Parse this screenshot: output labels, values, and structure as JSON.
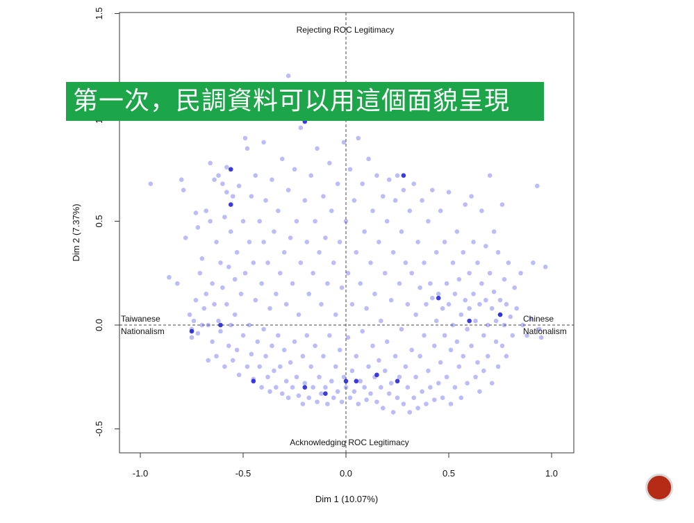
{
  "banner": {
    "text": "第一次，民調資料可以用這個面貌呈現"
  },
  "nav": {
    "icon": "next-slide-circle-icon",
    "color": "#b52b16"
  },
  "chart_data": {
    "type": "scatter",
    "title": "",
    "xlabel": "Dim 1 (10.07%)",
    "ylabel": "Dim 2 (7.37%)",
    "xlim": [
      -1.1,
      1.1
    ],
    "ylim": [
      -0.6,
      1.5
    ],
    "xticks": [
      -1.0,
      -0.5,
      0.0,
      0.5,
      1.0
    ],
    "xtick_labels": [
      "-1.0",
      "-0.5",
      "0.0",
      "0.5",
      "1.0"
    ],
    "yticks": [
      -0.5,
      0.0,
      0.5,
      1.0,
      1.5
    ],
    "ytick_labels": [
      "-0.5",
      "0.0",
      "0.5",
      "1.0",
      "1.5"
    ],
    "grid": false,
    "reference_lines": {
      "x": 0,
      "y": 0,
      "style": "dashed"
    },
    "point_color": "#4040ee",
    "point_opacity": 0.35,
    "annotations": {
      "top": "Rejecting ROC Legitimacy",
      "bottom": "Acknowledging ROC Legitimacy",
      "left_line1": "Taiwanese",
      "left_line2": "Nationalism",
      "right_line1": "Chinese",
      "right_line2": "Nationalism"
    },
    "points": [
      [
        -0.95,
        0.68
      ],
      [
        -0.86,
        0.23
      ],
      [
        -0.82,
        0.2
      ],
      [
        -0.8,
        0.7
      ],
      [
        -0.79,
        0.65
      ],
      [
        -0.78,
        0.42
      ],
      [
        -0.76,
        0.05
      ],
      [
        -0.75,
        -0.02
      ],
      [
        -0.75,
        -0.06
      ],
      [
        -0.74,
        0.02
      ],
      [
        -0.73,
        0.54
      ],
      [
        -0.73,
        0.12
      ],
      [
        -0.72,
        0.47
      ],
      [
        -0.72,
        -0.04
      ],
      [
        -0.71,
        0.25
      ],
      [
        -0.7,
        0.32
      ],
      [
        -0.7,
        0.0
      ],
      [
        -0.69,
        0.08
      ],
      [
        -0.68,
        0.55
      ],
      [
        -0.68,
        0.15
      ],
      [
        -0.67,
        0.0
      ],
      [
        -0.67,
        -0.17
      ],
      [
        -0.66,
        0.78
      ],
      [
        -0.66,
        0.5
      ],
      [
        -0.65,
        0.2
      ],
      [
        -0.65,
        -0.08
      ],
      [
        -0.64,
        0.7
      ],
      [
        -0.64,
        0.1
      ],
      [
        -0.63,
        0.4
      ],
      [
        -0.63,
        -0.15
      ],
      [
        -0.62,
        0.72
      ],
      [
        -0.62,
        0.02
      ],
      [
        -0.61,
        0.3
      ],
      [
        -0.61,
        -0.03
      ],
      [
        -0.6,
        0.68
      ],
      [
        -0.6,
        0.18
      ],
      [
        -0.59,
        0.52
      ],
      [
        -0.59,
        -0.2
      ],
      [
        -0.58,
        0.76
      ],
      [
        -0.58,
        0.64
      ],
      [
        -0.58,
        0.1
      ],
      [
        -0.57,
        0.28
      ],
      [
        -0.57,
        -0.1
      ],
      [
        -0.56,
        0.45
      ],
      [
        -0.56,
        0.0
      ],
      [
        -0.55,
        0.62
      ],
      [
        -0.55,
        -0.17
      ],
      [
        -0.54,
        0.22
      ],
      [
        -0.54,
        0.05
      ],
      [
        -0.53,
        0.35
      ],
      [
        -0.53,
        -0.12
      ],
      [
        -0.52,
        0.67
      ],
      [
        -0.52,
        -0.24
      ],
      [
        -0.51,
        0.15
      ],
      [
        -0.5,
        0.5
      ],
      [
        -0.5,
        -0.05
      ],
      [
        -0.49,
        0.9
      ],
      [
        -0.49,
        0.25
      ],
      [
        -0.48,
        0.85
      ],
      [
        -0.48,
        -0.2
      ],
      [
        -0.47,
        0.4
      ],
      [
        -0.47,
        0.0
      ],
      [
        -0.46,
        0.62
      ],
      [
        -0.46,
        -0.14
      ],
      [
        -0.45,
        0.3
      ],
      [
        -0.45,
        -0.26
      ],
      [
        -0.44,
        0.72
      ],
      [
        -0.44,
        0.12
      ],
      [
        -0.43,
        -0.08
      ],
      [
        -0.42,
        0.5
      ],
      [
        -0.42,
        -0.2
      ],
      [
        -0.41,
        0.2
      ],
      [
        -0.41,
        -0.3
      ],
      [
        -0.4,
        0.88
      ],
      [
        -0.4,
        0.4
      ],
      [
        -0.4,
        -0.02
      ],
      [
        -0.39,
        0.6
      ],
      [
        -0.39,
        -0.15
      ],
      [
        -0.38,
        0.3
      ],
      [
        -0.38,
        -0.25
      ],
      [
        -0.37,
        0.08
      ],
      [
        -0.37,
        -0.32
      ],
      [
        -0.36,
        0.7
      ],
      [
        -0.36,
        -0.1
      ],
      [
        -0.35,
        0.45
      ],
      [
        -0.35,
        -0.22
      ],
      [
        -0.34,
        0.15
      ],
      [
        -0.34,
        -0.3
      ],
      [
        -0.33,
        0.55
      ],
      [
        -0.33,
        -0.05
      ],
      [
        -0.32,
        0.25
      ],
      [
        -0.32,
        -0.2
      ],
      [
        -0.31,
        0.8
      ],
      [
        -0.31,
        -0.33
      ],
      [
        -0.3,
        0.35
      ],
      [
        -0.3,
        -0.12
      ],
      [
        -0.29,
        0.1
      ],
      [
        -0.29,
        -0.27
      ],
      [
        -0.28,
        1.2
      ],
      [
        -0.28,
        0.65
      ],
      [
        -0.28,
        -0.35
      ],
      [
        -0.27,
        0.42
      ],
      [
        -0.27,
        -0.18
      ],
      [
        -0.26,
        0.2
      ],
      [
        -0.26,
        -0.3
      ],
      [
        -0.25,
        0.75
      ],
      [
        -0.25,
        -0.08
      ],
      [
        -0.24,
        0.5
      ],
      [
        -0.24,
        -0.25
      ],
      [
        -0.23,
        0.05
      ],
      [
        -0.23,
        -0.34
      ],
      [
        -0.22,
        0.95
      ],
      [
        -0.22,
        0.3
      ],
      [
        -0.21,
        -0.15
      ],
      [
        -0.21,
        -0.38
      ],
      [
        -0.2,
        1.0
      ],
      [
        -0.2,
        0.6
      ],
      [
        -0.2,
        -0.28
      ],
      [
        -0.19,
        0.4
      ],
      [
        -0.19,
        -0.05
      ],
      [
        -0.18,
        0.15
      ],
      [
        -0.18,
        -0.35
      ],
      [
        -0.17,
        0.72
      ],
      [
        -0.17,
        -0.2
      ],
      [
        -0.16,
        0.25
      ],
      [
        -0.16,
        -0.3
      ],
      [
        -0.15,
        0.5
      ],
      [
        -0.15,
        -0.1
      ],
      [
        -0.14,
        0.85
      ],
      [
        -0.14,
        -0.37
      ],
      [
        -0.13,
        0.35
      ],
      [
        -0.13,
        -0.25
      ],
      [
        -0.12,
        0.1
      ],
      [
        -0.12,
        -0.33
      ],
      [
        -0.11,
        0.62
      ],
      [
        -0.11,
        -0.15
      ],
      [
        -0.1,
        0.42
      ],
      [
        -0.1,
        -0.3
      ],
      [
        -0.09,
        0.2
      ],
      [
        -0.09,
        -0.38
      ],
      [
        -0.08,
        0.78
      ],
      [
        -0.08,
        -0.05
      ],
      [
        -0.07,
        0.55
      ],
      [
        -0.07,
        -0.27
      ],
      [
        -0.06,
        0.3
      ],
      [
        -0.06,
        -0.35
      ],
      [
        -0.05,
        0.05
      ],
      [
        -0.05,
        -0.2
      ],
      [
        -0.04,
        0.68
      ],
      [
        -0.04,
        -0.32
      ],
      [
        -0.03,
        0.4
      ],
      [
        -0.03,
        -0.12
      ],
      [
        -0.02,
        0.18
      ],
      [
        -0.02,
        -0.37
      ],
      [
        -0.01,
        0.88
      ],
      [
        -0.01,
        -0.25
      ],
      [
        0.0,
        0.5
      ],
      [
        0.0,
        -0.3
      ],
      [
        0.01,
        0.25
      ],
      [
        0.01,
        -0.06
      ],
      [
        0.02,
        0.75
      ],
      [
        0.02,
        -0.35
      ],
      [
        0.03,
        0.1
      ],
      [
        0.03,
        -0.22
      ],
      [
        0.04,
        0.6
      ],
      [
        0.04,
        -0.32
      ],
      [
        0.05,
        0.35
      ],
      [
        0.05,
        -0.15
      ],
      [
        0.06,
        0.9
      ],
      [
        0.06,
        -0.38
      ],
      [
        0.07,
        0.2
      ],
      [
        0.07,
        -0.27
      ],
      [
        0.08,
        0.68
      ],
      [
        0.08,
        -0.03
      ],
      [
        0.09,
        0.45
      ],
      [
        0.09,
        -0.3
      ],
      [
        0.1,
        0.08
      ],
      [
        0.1,
        -0.36
      ],
      [
        0.11,
        0.8
      ],
      [
        0.11,
        -0.2
      ],
      [
        0.12,
        0.3
      ],
      [
        0.12,
        -0.33
      ],
      [
        0.13,
        0.55
      ],
      [
        0.13,
        -0.1
      ],
      [
        0.14,
        0.15
      ],
      [
        0.14,
        -0.25
      ],
      [
        0.15,
        0.72
      ],
      [
        0.15,
        -0.37
      ],
      [
        0.16,
        0.4
      ],
      [
        0.16,
        -0.17
      ],
      [
        0.17,
        0.02
      ],
      [
        0.17,
        -0.3
      ],
      [
        0.18,
        0.62
      ],
      [
        0.18,
        -0.4
      ],
      [
        0.19,
        0.25
      ],
      [
        0.19,
        -0.22
      ],
      [
        0.2,
        0.5
      ],
      [
        0.2,
        -0.08
      ],
      [
        0.21,
        0.7
      ],
      [
        0.21,
        -0.33
      ],
      [
        0.22,
        0.12
      ],
      [
        0.22,
        -0.28
      ],
      [
        0.23,
        0.35
      ],
      [
        0.23,
        -0.42
      ],
      [
        0.24,
        0.6
      ],
      [
        0.24,
        -0.15
      ],
      [
        0.25,
        0.72
      ],
      [
        0.25,
        -0.35
      ],
      [
        0.26,
        0.2
      ],
      [
        0.26,
        -0.25
      ],
      [
        0.27,
        0.45
      ],
      [
        0.27,
        -0.02
      ],
      [
        0.28,
        0.65
      ],
      [
        0.28,
        -0.38
      ],
      [
        0.29,
        0.3
      ],
      [
        0.29,
        -0.2
      ],
      [
        0.3,
        0.1
      ],
      [
        0.3,
        -0.3
      ],
      [
        0.31,
        0.55
      ],
      [
        0.31,
        -0.42
      ],
      [
        0.32,
        0.25
      ],
      [
        0.32,
        -0.12
      ],
      [
        0.33,
        0.68
      ],
      [
        0.33,
        -0.35
      ],
      [
        0.34,
        0.05
      ],
      [
        0.34,
        -0.25
      ],
      [
        0.35,
        0.4
      ],
      [
        0.35,
        -0.4
      ],
      [
        0.36,
        0.18
      ],
      [
        0.36,
        -0.15
      ],
      [
        0.37,
        0.6
      ],
      [
        0.37,
        -0.32
      ],
      [
        0.38,
        0.3
      ],
      [
        0.38,
        -0.05
      ],
      [
        0.39,
        0.1
      ],
      [
        0.39,
        -0.38
      ],
      [
        0.4,
        0.5
      ],
      [
        0.4,
        -0.22
      ],
      [
        0.41,
        0.2
      ],
      [
        0.41,
        -0.3
      ],
      [
        0.42,
        0.65
      ],
      [
        0.42,
        0.13
      ],
      [
        0.43,
        -0.1
      ],
      [
        0.43,
        -0.36
      ],
      [
        0.44,
        0.35
      ],
      [
        0.44,
        0.02
      ],
      [
        0.45,
        0.15
      ],
      [
        0.45,
        -0.28
      ],
      [
        0.46,
        0.55
      ],
      [
        0.46,
        -0.18
      ],
      [
        0.47,
        0.08
      ],
      [
        0.47,
        -0.35
      ],
      [
        0.48,
        0.4
      ],
      [
        0.48,
        -0.05
      ],
      [
        0.49,
        0.2
      ],
      [
        0.49,
        -0.25
      ],
      [
        0.5,
        0.64
      ],
      [
        0.5,
        0.1
      ],
      [
        0.51,
        -0.12
      ],
      [
        0.51,
        -0.38
      ],
      [
        0.52,
        0.3
      ],
      [
        0.52,
        0.0
      ],
      [
        0.53,
        0.15
      ],
      [
        0.53,
        -0.3
      ],
      [
        0.54,
        0.45
      ],
      [
        0.54,
        -0.08
      ],
      [
        0.55,
        0.22
      ],
      [
        0.55,
        -0.2
      ],
      [
        0.56,
        0.05
      ],
      [
        0.56,
        -0.35
      ],
      [
        0.57,
        0.35
      ],
      [
        0.57,
        -0.15
      ],
      [
        0.58,
        0.58
      ],
      [
        0.58,
        0.12
      ],
      [
        0.59,
        -0.02
      ],
      [
        0.59,
        -0.28
      ],
      [
        0.6,
        0.25
      ],
      [
        0.6,
        0.08
      ],
      [
        0.61,
        0.62
      ],
      [
        0.61,
        -0.1
      ],
      [
        0.62,
        0.4
      ],
      [
        0.62,
        0.15
      ],
      [
        0.63,
        -0.25
      ],
      [
        0.63,
        0.02
      ],
      [
        0.64,
        0.3
      ],
      [
        0.64,
        -0.18
      ],
      [
        0.65,
        0.1
      ],
      [
        0.65,
        -0.32
      ],
      [
        0.66,
        0.55
      ],
      [
        0.66,
        0.2
      ],
      [
        0.67,
        -0.05
      ],
      [
        0.67,
        -0.22
      ],
      [
        0.68,
        0.38
      ],
      [
        0.68,
        0.12
      ],
      [
        0.69,
        0.0
      ],
      [
        0.69,
        -0.15
      ],
      [
        0.7,
        0.72
      ],
      [
        0.7,
        0.25
      ],
      [
        0.71,
        0.08
      ],
      [
        0.71,
        -0.28
      ],
      [
        0.72,
        0.45
      ],
      [
        0.72,
        0.16
      ],
      [
        0.73,
        -0.08
      ],
      [
        0.73,
        0.02
      ],
      [
        0.74,
        0.35
      ],
      [
        0.74,
        -0.2
      ],
      [
        0.75,
        0.12
      ],
      [
        0.75,
        0.05
      ],
      [
        0.76,
        0.58
      ],
      [
        0.76,
        -0.1
      ],
      [
        0.77,
        0.22
      ],
      [
        0.77,
        0.0
      ],
      [
        0.78,
        0.1
      ],
      [
        0.78,
        -0.15
      ],
      [
        0.79,
        0.3
      ],
      [
        0.8,
        0.04
      ],
      [
        0.81,
        -0.05
      ],
      [
        0.82,
        0.18
      ],
      [
        0.83,
        0.08
      ],
      [
        0.85,
        0.25
      ],
      [
        0.86,
        0.0
      ],
      [
        0.88,
        -0.05
      ],
      [
        0.9,
        0.03
      ],
      [
        0.91,
        0.3
      ],
      [
        0.93,
        0.67
      ],
      [
        0.94,
        -0.02
      ],
      [
        0.95,
        -0.06
      ],
      [
        0.97,
        0.28
      ]
    ],
    "dark_points": [
      [
        -0.2,
        0.98
      ],
      [
        -0.56,
        0.75
      ],
      [
        -0.56,
        0.58
      ],
      [
        -0.61,
        0.0
      ],
      [
        -0.75,
        -0.03
      ],
      [
        -0.45,
        -0.27
      ],
      [
        -0.2,
        -0.3
      ],
      [
        0.0,
        -0.27
      ],
      [
        0.05,
        -0.27
      ],
      [
        0.15,
        -0.24
      ],
      [
        0.25,
        -0.27
      ],
      [
        -0.1,
        -0.33
      ],
      [
        0.28,
        0.72
      ],
      [
        0.45,
        0.13
      ],
      [
        0.6,
        0.02
      ],
      [
        0.75,
        0.05
      ]
    ]
  }
}
